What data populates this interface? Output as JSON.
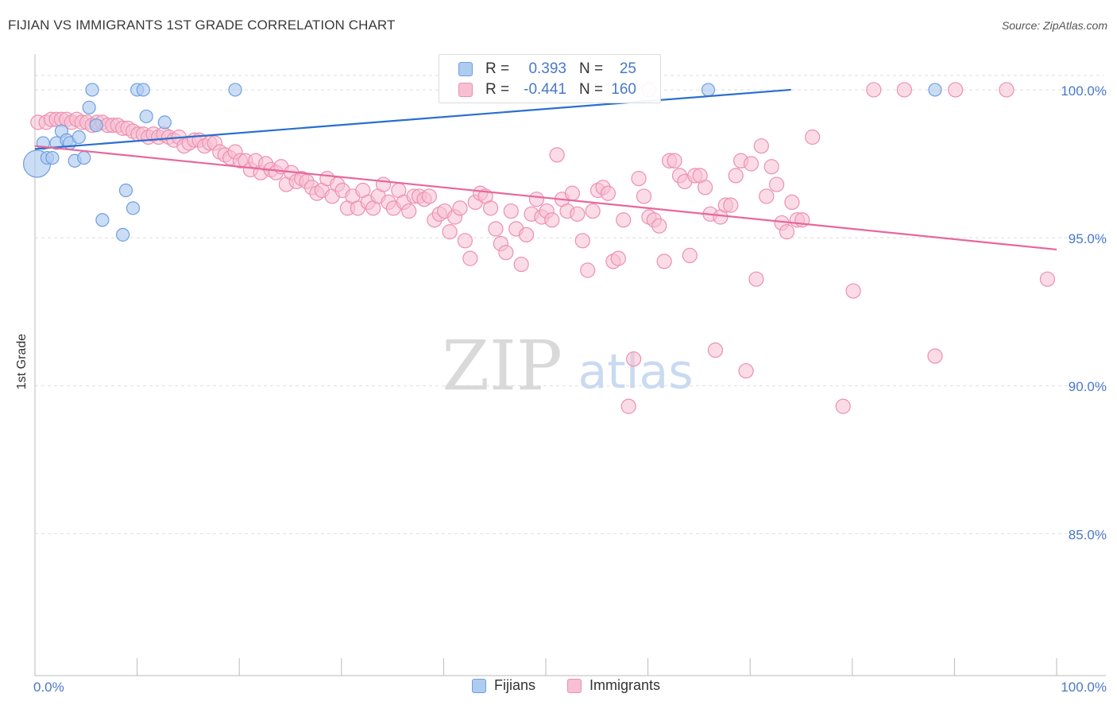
{
  "title": "FIJIAN VS IMMIGRANTS 1ST GRADE CORRELATION CHART",
  "source": "Source: ZipAtlas.com",
  "watermark": {
    "zip": "ZIP",
    "atlas": "atlas"
  },
  "legend_top": {
    "rows": [
      {
        "r_label": "R =",
        "r_value": "0.393",
        "n_label": "N =",
        "n_value": "25"
      },
      {
        "r_label": "R =",
        "r_value": "-0.441",
        "n_label": "N =",
        "n_value": "160"
      }
    ]
  },
  "legend_bottom": [
    "Fijians",
    "Immigrants"
  ],
  "colors": {
    "fijians_fill": "#aecbf0",
    "fijians_stroke": "#6f9fe0",
    "fijians_line": "#2a6fcf",
    "immigrants_fill": "#f7bfd2",
    "immigrants_stroke": "#ec8fb0",
    "immigrants_line": "#e8679a",
    "axis_text": "#4a78c8",
    "grid": "#dddddd"
  },
  "chart_data": {
    "type": "scatter",
    "title": "FIJIAN VS IMMIGRANTS 1ST GRADE CORRELATION CHART",
    "xlabel": "",
    "ylabel": "1st Grade",
    "xlim": [
      0,
      100
    ],
    "ylim": [
      80.2,
      101.1
    ],
    "x_tick_labels": [
      "0.0%",
      "100.0%"
    ],
    "y_ticks": [
      85,
      90,
      95,
      100
    ],
    "y_tick_labels": [
      "85.0%",
      "90.0%",
      "95.0%",
      "100.0%"
    ],
    "grid": true,
    "legend_placement": "bottom",
    "series": [
      {
        "name": "Fijians",
        "points": [
          [
            0.2,
            97.5
          ],
          [
            0.8,
            98.2
          ],
          [
            1.2,
            97.7
          ],
          [
            1.7,
            97.7
          ],
          [
            2.1,
            98.2
          ],
          [
            2.6,
            98.6
          ],
          [
            3.1,
            98.3
          ],
          [
            3.4,
            98.2
          ],
          [
            3.9,
            97.6
          ],
          [
            4.3,
            98.4
          ],
          [
            4.8,
            97.7
          ],
          [
            5.3,
            99.4
          ],
          [
            5.6,
            100.0
          ],
          [
            6.0,
            98.8
          ],
          [
            6.6,
            95.6
          ],
          [
            8.6,
            95.1
          ],
          [
            8.9,
            96.6
          ],
          [
            9.6,
            96.0
          ],
          [
            10.0,
            100.0
          ],
          [
            10.6,
            100.0
          ],
          [
            10.9,
            99.1
          ],
          [
            12.7,
            98.9
          ],
          [
            19.6,
            100.0
          ],
          [
            65.9,
            100.0
          ],
          [
            88.1,
            100.0
          ]
        ],
        "trend": [
          [
            0,
            98.0
          ],
          [
            74,
            100.0
          ]
        ],
        "R": 0.393,
        "N": 25
      },
      {
        "name": "Immigrants",
        "points": [
          [
            0.3,
            98.9
          ],
          [
            1.1,
            98.9
          ],
          [
            1.6,
            99.0
          ],
          [
            2.1,
            99.0
          ],
          [
            2.6,
            99.0
          ],
          [
            3.1,
            99.0
          ],
          [
            3.6,
            98.9
          ],
          [
            4.1,
            99.0
          ],
          [
            4.6,
            98.9
          ],
          [
            5.1,
            98.9
          ],
          [
            5.6,
            98.8
          ],
          [
            6.1,
            98.9
          ],
          [
            6.6,
            98.9
          ],
          [
            7.1,
            98.8
          ],
          [
            7.6,
            98.8
          ],
          [
            8.1,
            98.8
          ],
          [
            8.6,
            98.7
          ],
          [
            9.1,
            98.7
          ],
          [
            9.6,
            98.6
          ],
          [
            10.1,
            98.5
          ],
          [
            10.6,
            98.5
          ],
          [
            11.1,
            98.4
          ],
          [
            11.6,
            98.5
          ],
          [
            12.1,
            98.4
          ],
          [
            12.6,
            98.5
          ],
          [
            13.1,
            98.4
          ],
          [
            13.6,
            98.3
          ],
          [
            14.1,
            98.4
          ],
          [
            14.6,
            98.1
          ],
          [
            15.1,
            98.2
          ],
          [
            15.6,
            98.3
          ],
          [
            16.1,
            98.3
          ],
          [
            16.6,
            98.1
          ],
          [
            17.1,
            98.2
          ],
          [
            17.6,
            98.2
          ],
          [
            18.1,
            97.9
          ],
          [
            18.6,
            97.8
          ],
          [
            19.1,
            97.7
          ],
          [
            19.6,
            97.9
          ],
          [
            20.1,
            97.6
          ],
          [
            20.6,
            97.6
          ],
          [
            21.1,
            97.3
          ],
          [
            21.6,
            97.6
          ],
          [
            22.1,
            97.2
          ],
          [
            22.6,
            97.5
          ],
          [
            23.1,
            97.3
          ],
          [
            23.6,
            97.2
          ],
          [
            24.1,
            97.4
          ],
          [
            24.6,
            96.8
          ],
          [
            25.1,
            97.2
          ],
          [
            25.6,
            96.9
          ],
          [
            26.1,
            97.0
          ],
          [
            26.6,
            96.9
          ],
          [
            27.1,
            96.7
          ],
          [
            27.6,
            96.5
          ],
          [
            28.1,
            96.6
          ],
          [
            28.6,
            97.0
          ],
          [
            29.1,
            96.4
          ],
          [
            29.6,
            96.8
          ],
          [
            30.1,
            96.6
          ],
          [
            30.6,
            96.0
          ],
          [
            31.1,
            96.4
          ],
          [
            31.6,
            96.0
          ],
          [
            32.1,
            96.6
          ],
          [
            32.6,
            96.2
          ],
          [
            33.1,
            96.0
          ],
          [
            33.6,
            96.4
          ],
          [
            34.1,
            96.8
          ],
          [
            34.6,
            96.2
          ],
          [
            35.1,
            96.0
          ],
          [
            35.6,
            96.6
          ],
          [
            36.1,
            96.2
          ],
          [
            36.6,
            95.9
          ],
          [
            37.1,
            96.4
          ],
          [
            37.6,
            96.4
          ],
          [
            38.1,
            96.3
          ],
          [
            38.6,
            96.4
          ],
          [
            39.1,
            95.6
          ],
          [
            39.6,
            95.8
          ],
          [
            40.1,
            95.9
          ],
          [
            40.6,
            95.2
          ],
          [
            41.1,
            95.7
          ],
          [
            41.6,
            96.0
          ],
          [
            42.1,
            94.9
          ],
          [
            42.6,
            94.3
          ],
          [
            43.1,
            96.2
          ],
          [
            43.6,
            96.5
          ],
          [
            44.1,
            96.4
          ],
          [
            44.6,
            96.0
          ],
          [
            45.1,
            95.3
          ],
          [
            45.6,
            94.8
          ],
          [
            46.1,
            94.5
          ],
          [
            46.6,
            95.9
          ],
          [
            47.1,
            95.3
          ],
          [
            47.6,
            94.1
          ],
          [
            48.1,
            95.1
          ],
          [
            48.6,
            95.8
          ],
          [
            49.1,
            96.3
          ],
          [
            49.6,
            95.7
          ],
          [
            50.1,
            95.9
          ],
          [
            50.6,
            95.6
          ],
          [
            51.1,
            97.8
          ],
          [
            51.6,
            96.3
          ],
          [
            52.1,
            95.9
          ],
          [
            52.6,
            96.5
          ],
          [
            53.1,
            95.8
          ],
          [
            53.6,
            94.9
          ],
          [
            54.1,
            93.9
          ],
          [
            54.6,
            95.9
          ],
          [
            55.1,
            96.6
          ],
          [
            55.6,
            96.7
          ],
          [
            56.1,
            96.5
          ],
          [
            56.6,
            94.2
          ],
          [
            57.1,
            94.3
          ],
          [
            57.6,
            95.6
          ],
          [
            58.1,
            89.3
          ],
          [
            58.6,
            90.9
          ],
          [
            59.1,
            97.0
          ],
          [
            59.6,
            96.4
          ],
          [
            60.1,
            95.7
          ],
          [
            60.6,
            95.6
          ],
          [
            61.1,
            95.4
          ],
          [
            61.6,
            94.2
          ],
          [
            62.1,
            97.6
          ],
          [
            62.6,
            97.6
          ],
          [
            63.1,
            97.1
          ],
          [
            63.6,
            96.9
          ],
          [
            64.1,
            94.4
          ],
          [
            64.6,
            97.1
          ],
          [
            65.1,
            97.1
          ],
          [
            65.6,
            96.7
          ],
          [
            66.1,
            95.8
          ],
          [
            66.6,
            91.2
          ],
          [
            67.1,
            95.7
          ],
          [
            67.6,
            96.1
          ],
          [
            68.1,
            96.1
          ],
          [
            68.6,
            97.1
          ],
          [
            69.1,
            97.6
          ],
          [
            69.6,
            90.5
          ],
          [
            70.1,
            97.5
          ],
          [
            70.6,
            93.6
          ],
          [
            71.1,
            98.1
          ],
          [
            71.6,
            96.4
          ],
          [
            72.1,
            97.4
          ],
          [
            72.6,
            96.8
          ],
          [
            73.1,
            95.5
          ],
          [
            73.6,
            95.2
          ],
          [
            74.1,
            96.2
          ],
          [
            74.6,
            95.6
          ],
          [
            75.1,
            95.6
          ],
          [
            76.1,
            98.4
          ],
          [
            79.1,
            89.3
          ],
          [
            80.1,
            93.2
          ],
          [
            82.1,
            100.0
          ],
          [
            85.1,
            100.0
          ],
          [
            88.1,
            91.0
          ],
          [
            90.1,
            100.0
          ],
          [
            95.1,
            100.0
          ],
          [
            99.1,
            93.6
          ],
          [
            60.1,
            100.0
          ]
        ],
        "trend": [
          [
            0,
            98.1
          ],
          [
            100,
            94.6
          ]
        ],
        "R": -0.441,
        "N": 160
      }
    ]
  }
}
